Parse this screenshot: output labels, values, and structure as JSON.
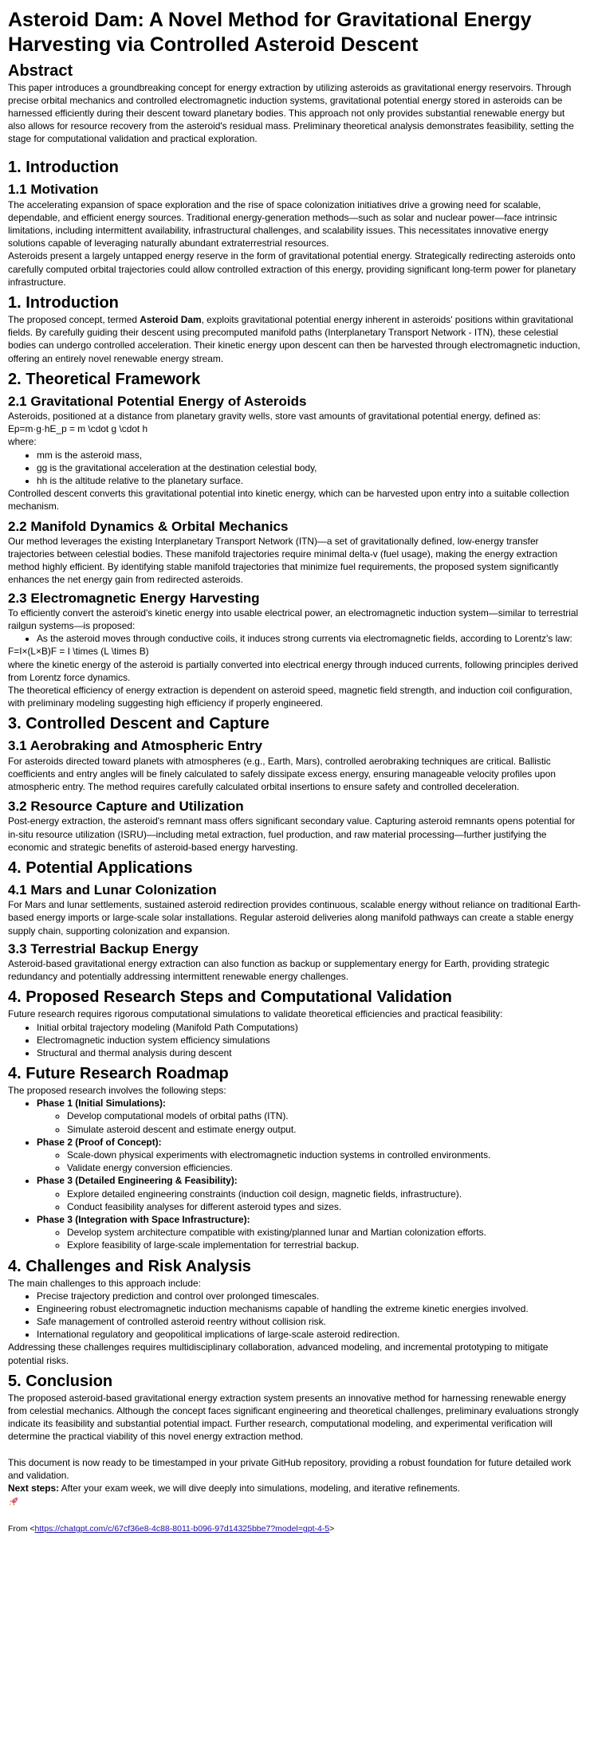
{
  "title": "Asteroid Dam: A Novel Method for Gravitational Energy Harvesting via Controlled Asteroid Descent",
  "abstract": {
    "heading": "Abstract",
    "text": "This paper introduces a groundbreaking concept for energy extraction by utilizing asteroids as gravitational energy reservoirs. Through precise orbital mechanics and controlled electromagnetic induction systems, gravitational potential energy stored in asteroids can be harnessed efficiently during their descent toward planetary bodies. This approach not only provides substantial renewable energy but also allows for resource recovery from the asteroid's residual mass. Preliminary theoretical analysis demonstrates feasibility, setting the stage for computational validation and practical exploration."
  },
  "intro1": {
    "heading": "1. Introduction",
    "sub_heading": "1.1 Motivation",
    "p1": "The accelerating expansion of space exploration and the rise of space colonization initiatives drive a growing need for scalable, dependable, and efficient energy sources. Traditional energy-generation methods—such as solar and nuclear power—face intrinsic limitations, including intermittent availability, infrastructural challenges, and scalability issues. This necessitates innovative energy solutions capable of leveraging naturally abundant extraterrestrial resources.",
    "p2": "Asteroids present a largely untapped energy reserve in the form of gravitational potential energy. Strategically redirecting asteroids onto carefully computed orbital trajectories could allow controlled extraction of this energy, providing significant long-term power for planetary infrastructure."
  },
  "intro2": {
    "heading": "1. Introduction",
    "p_pre": "The proposed concept, termed ",
    "p_bold": "Asteroid Dam",
    "p_post": ", exploits gravitational potential energy inherent in asteroids' positions within gravitational fields. By carefully guiding their descent using precomputed manifold paths (Interplanetary Transport Network - ITN), these celestial bodies can undergo controlled acceleration. Their kinetic energy upon descent can then be harvested through electromagnetic induction, offering an entirely novel renewable energy stream."
  },
  "theory": {
    "heading": "2. Theoretical Framework",
    "s21": {
      "heading": "2.1 Gravitational Potential Energy of Asteroids",
      "p1": "Asteroids, positioned at a distance from planetary gravity wells, store vast amounts of gravitational potential energy, defined as:",
      "formula": "Ep=m·g·hE_p = m \\cdot g \\cdot h",
      "where": "where:",
      "items": [
        "mm is the asteroid mass,",
        "gg is the gravitational acceleration at the destination celestial body,",
        "hh is the altitude relative to the planetary surface."
      ],
      "p2": "Controlled descent converts this gravitational potential into kinetic energy, which can be harvested upon entry into a suitable collection mechanism."
    },
    "s22": {
      "heading": "2.2 Manifold Dynamics & Orbital Mechanics",
      "p": "Our method leverages the existing Interplanetary Transport Network (ITN)—a set of gravitationally defined, low-energy transfer trajectories between celestial bodies. These manifold trajectories require minimal delta-v (fuel usage), making the energy extraction method highly efficient. By identifying stable manifold trajectories that minimize fuel requirements, the proposed system significantly enhances the net energy gain from redirected asteroids."
    },
    "s23": {
      "heading": "2.3 Electromagnetic Energy Harvesting",
      "p1": "To efficiently convert the asteroid's kinetic energy into usable electrical power, an electromagnetic induction system—similar to terrestrial railgun systems—is proposed:",
      "items": [
        "As the asteroid moves through conductive coils, it induces strong currents via electromagnetic fields, according to Lorentz's law:"
      ],
      "formula": "F=I×(L×B)F = I \\times (L \\times B)",
      "p2": "where the kinetic energy of the asteroid is partially converted into electrical energy through induced currents, following principles derived from Lorentz force dynamics.",
      "p3": "The theoretical efficiency of energy extraction is dependent on asteroid speed, magnetic field strength, and induction coil configuration, with preliminary modeling suggesting high efficiency if properly engineered."
    }
  },
  "descent": {
    "heading": "3. Controlled Descent and Capture",
    "s31": {
      "heading": "3.1 Aerobraking and Atmospheric Entry",
      "p": "For asteroids directed toward planets with atmospheres (e.g., Earth, Mars), controlled aerobraking techniques are critical. Ballistic coefficients and entry angles will be finely calculated to safely dissipate excess energy, ensuring manageable velocity profiles upon atmospheric entry. The method requires carefully calculated orbital insertions to ensure safety and controlled deceleration."
    },
    "s32": {
      "heading": "3.2 Resource Capture and Utilization",
      "p": "Post-energy extraction, the asteroid's remnant mass offers significant secondary value. Capturing asteroid remnants opens potential for in-situ resource utilization (ISRU)—including metal extraction, fuel production, and raw material processing—further justifying the economic and strategic benefits of asteroid-based energy harvesting."
    }
  },
  "applications": {
    "heading": "4. Potential Applications",
    "s41": {
      "heading": "4.1 Mars and Lunar Colonization",
      "p": "For Mars and lunar settlements, sustained asteroid redirection provides continuous, scalable energy without reliance on traditional Earth-based energy imports or large-scale solar installations. Regular asteroid deliveries along manifold pathways can create a stable energy supply chain, supporting colonization and expansion."
    },
    "s33": {
      "heading": "3.3 Terrestrial Backup Energy",
      "p": "Asteroid-based gravitational energy extraction can also function as backup or supplementary energy for Earth, providing strategic redundancy and potentially addressing intermittent renewable energy challenges."
    }
  },
  "research": {
    "heading": "4. Proposed Research Steps and Computational Validation",
    "p": "Future research requires rigorous computational simulations to validate theoretical efficiencies and practical feasibility:",
    "items": [
      "Initial orbital trajectory modeling (Manifold Path Computations)",
      "Electromagnetic induction system efficiency simulations",
      "Structural and thermal analysis during descent"
    ]
  },
  "roadmap": {
    "heading": "4. Future Research Roadmap",
    "p": "The proposed research involves the following steps:",
    "phases": [
      {
        "label": "Phase 1 (Initial Simulations):",
        "items": [
          "Develop computational models of orbital paths (ITN).",
          "Simulate asteroid descent and estimate energy output."
        ]
      },
      {
        "label": "Phase 2 (Proof of Concept):",
        "items": [
          "Scale-down physical experiments with electromagnetic induction systems in controlled environments.",
          "Validate energy conversion efficiencies."
        ]
      },
      {
        "label": "Phase 3 (Detailed Engineering & Feasibility):",
        "items": [
          "Explore detailed engineering constraints (induction coil design, magnetic fields, infrastructure).",
          "Conduct feasibility analyses for different asteroid types and sizes."
        ]
      },
      {
        "label": "Phase 3 (Integration with Space Infrastructure):",
        "items": [
          "Develop system architecture compatible with existing/planned lunar and Martian colonization efforts.",
          "Explore feasibility of large-scale implementation for terrestrial backup."
        ]
      }
    ]
  },
  "challenges": {
    "heading": "4. Challenges and Risk Analysis",
    "p1": "The main challenges to this approach include:",
    "items": [
      "Precise trajectory prediction and control over prolonged timescales.",
      "Engineering robust electromagnetic induction mechanisms capable of handling the extreme kinetic energies involved.",
      "Safe management of controlled asteroid reentry without collision risk.",
      "International regulatory and geopolitical implications of large-scale asteroid redirection."
    ],
    "p2": "Addressing these challenges requires multidisciplinary collaboration, advanced modeling, and incremental prototyping to mitigate potential risks."
  },
  "conclusion": {
    "heading": "5. Conclusion",
    "p1": "The proposed asteroid-based gravitational energy extraction system presents an innovative method for harnessing renewable energy from celestial mechanics. Although the concept faces significant engineering and theoretical challenges, preliminary evaluations strongly indicate its feasibility and substantial potential impact. Further research, computational modeling, and experimental verification will determine the practical viability of this novel energy extraction method.",
    "p2": "This document is now ready to be timestamped in your private GitHub repository, providing a robust foundation for future detailed work and validation.",
    "next_label": "Next steps:",
    "next_text": " After your exam week, we will dive deeply into simulations, modeling, and iterative refinements.",
    "emoji_icon": "rocket-icon"
  },
  "footer": {
    "from_label": "From <",
    "url": "https://chatgpt.com/c/67cf36e8-4c88-8011-b096-97d14325bbe7?model=gpt-4-5",
    "close": ">"
  }
}
